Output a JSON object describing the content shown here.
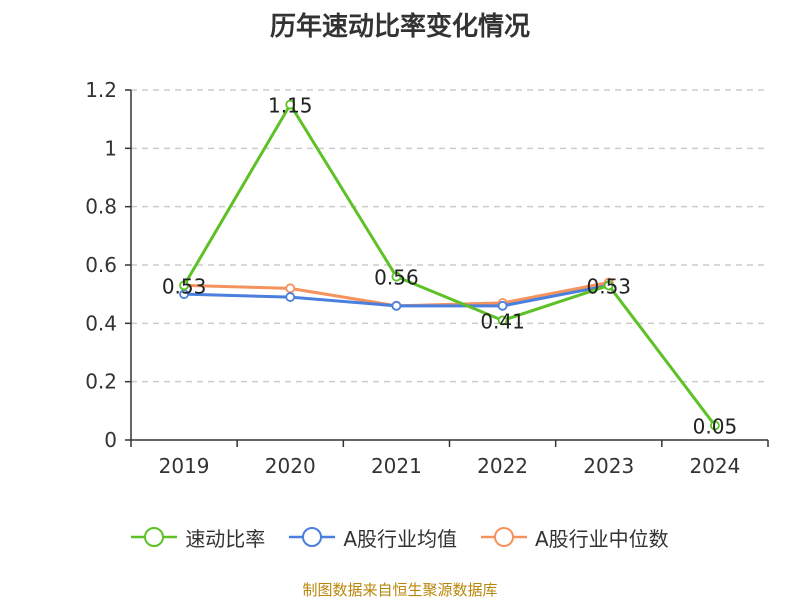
{
  "title": "历年速动比率变化情况",
  "source": "制图数据来自恒生聚源数据库",
  "colors": {
    "series_0": "#5ec127",
    "series_1": "#4a7fdd",
    "series_2": "#f4935d",
    "axis": "#333333",
    "grid": "#cccccc"
  },
  "chart_data": {
    "type": "line",
    "title": "历年速动比率变化情况",
    "categories": [
      "2019",
      "2020",
      "2021",
      "2022",
      "2023",
      "2024"
    ],
    "ylim": [
      0,
      1.2
    ],
    "yticks": [
      "0",
      "0.2",
      "0.4",
      "0.6",
      "0.8",
      "1",
      "1.2"
    ],
    "grid": true,
    "legend_position": "bottom",
    "series": [
      {
        "name": "速动比率",
        "values": [
          0.53,
          1.15,
          0.56,
          0.41,
          0.53,
          0.05
        ],
        "labels": [
          "0.53",
          "1.15",
          "0.56",
          "0.41",
          "0.53",
          "0.05"
        ]
      },
      {
        "name": "A股行业均值",
        "values": [
          0.5,
          0.49,
          0.46,
          0.46,
          0.53,
          null
        ]
      },
      {
        "name": "A股行业中位数",
        "values": [
          0.53,
          0.52,
          0.46,
          0.47,
          0.54,
          null
        ]
      }
    ]
  }
}
